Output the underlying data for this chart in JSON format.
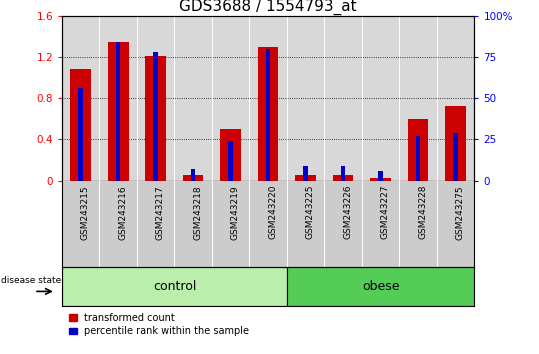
{
  "title": "GDS3688 / 1554793_at",
  "samples": [
    "GSM243215",
    "GSM243216",
    "GSM243217",
    "GSM243218",
    "GSM243219",
    "GSM243220",
    "GSM243225",
    "GSM243226",
    "GSM243227",
    "GSM243228",
    "GSM243275"
  ],
  "transformed_count": [
    1.08,
    1.35,
    1.21,
    0.05,
    0.5,
    1.3,
    0.05,
    0.05,
    0.02,
    0.6,
    0.72
  ],
  "percentile_rank": [
    56,
    84,
    78,
    7,
    24,
    80,
    9,
    9,
    6,
    27,
    29
  ],
  "groups": [
    {
      "label": "control",
      "start": 0,
      "end": 6,
      "color": "#bbeeaa"
    },
    {
      "label": "obese",
      "start": 6,
      "end": 11,
      "color": "#55cc55"
    }
  ],
  "ylim_left": [
    0,
    1.6
  ],
  "ylim_right": [
    0,
    100
  ],
  "yticks_left": [
    0,
    0.4,
    0.8,
    1.2,
    1.6
  ],
  "yticks_right": [
    0,
    25,
    50,
    75,
    100
  ],
  "ytick_labels_left": [
    "0",
    "0.4",
    "0.8",
    "1.2",
    "1.6"
  ],
  "ytick_labels_right": [
    "0",
    "25",
    "50",
    "75",
    "100%"
  ],
  "bar_color_red": "#cc0000",
  "bar_color_blue": "#0000cc",
  "bar_width": 0.55,
  "blue_bar_width": 0.12,
  "disease_state_label": "disease state",
  "legend_red_label": "transformed count",
  "legend_blue_label": "percentile rank within the sample",
  "plot_bg": "#d8d8d8",
  "sample_band_bg": "#cccccc",
  "title_fontsize": 11,
  "tick_fontsize": 7.5,
  "sample_fontsize": 6.5,
  "group_label_fontsize": 9
}
